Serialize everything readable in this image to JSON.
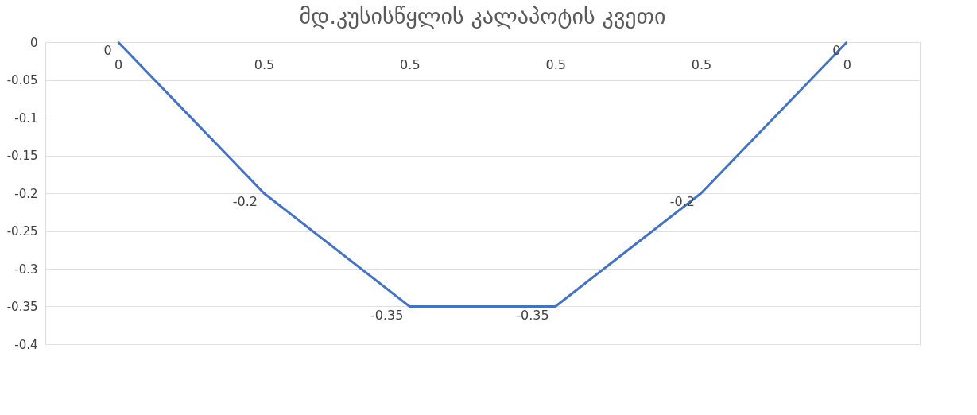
{
  "chart_data": {
    "type": "line",
    "title": "მდ.კუსისწყლის კალაპოტის კვეთი",
    "categories": [
      "0",
      "0.5",
      "0.5",
      "0.5",
      "0.5",
      "0"
    ],
    "series": [
      {
        "color": "#4472c4",
        "values": [
          0,
          -0.2,
          -0.35,
          -0.35,
          -0.2,
          0
        ]
      }
    ],
    "ylim": [
      -0.4,
      0
    ],
    "yticks": [
      0,
      -0.05,
      -0.1,
      -0.15,
      -0.2,
      -0.25,
      -0.3,
      -0.35,
      -0.4
    ],
    "grid": "y",
    "data_labels": true,
    "legend": false,
    "marker": "none",
    "line_style": "solid"
  }
}
